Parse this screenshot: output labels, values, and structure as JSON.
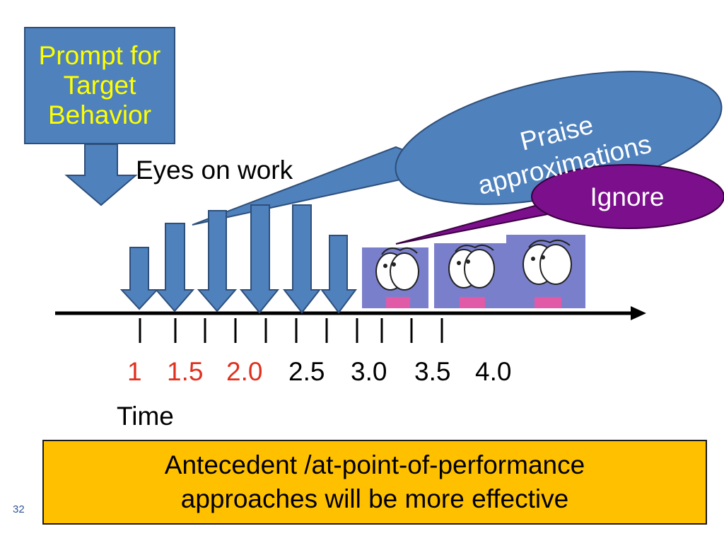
{
  "prompt_box": {
    "lines": [
      "Prompt for",
      "Target",
      "Behavior"
    ]
  },
  "eyes_label": "Eyes on work",
  "praise_bubble": {
    "lines": [
      "Praise",
      "approximations"
    ]
  },
  "ignore_bubble": {
    "label": "Ignore"
  },
  "timeline": {
    "tick_labels": [
      {
        "text": "1",
        "highlight": true
      },
      {
        "text": "1.5",
        "highlight": true
      },
      {
        "text": "2.0",
        "highlight": true
      },
      {
        "text": "2.5",
        "highlight": false
      },
      {
        "text": "3.0",
        "highlight": false
      },
      {
        "text": "3.5",
        "highlight": false
      },
      {
        "text": "4.0",
        "highlight": false
      }
    ],
    "axis_label": "Time"
  },
  "conclusion": {
    "lines": [
      "Antecedent /at-point-of-performance",
      "approaches will be more effective"
    ]
  },
  "slide_number": "32",
  "colors": {
    "arrow_blue": "#4f81bd",
    "highlight_red": "#e0301e",
    "ignore_purple": "#7b0f8c",
    "conclusion_gold": "#ffc000",
    "prompt_text_yellow": "#ffff00"
  }
}
